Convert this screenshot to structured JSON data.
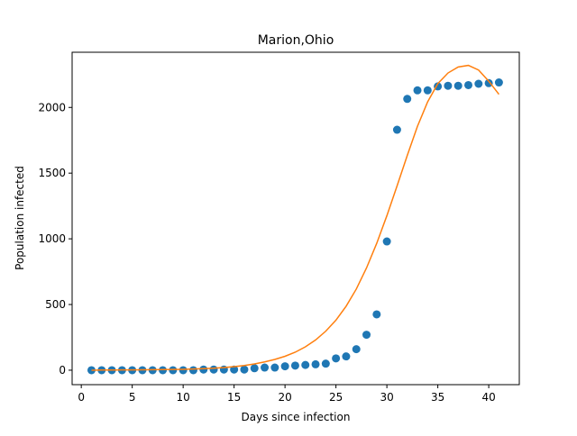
{
  "chart_data": {
    "type": "scatter",
    "title": "Marion,Ohio",
    "xlabel": "Days since infection",
    "ylabel": "Population infected",
    "xlim": [
      -0.9,
      43.0
    ],
    "ylim": [
      -110,
      2420
    ],
    "xticks": [
      0,
      5,
      10,
      15,
      20,
      25,
      30,
      35,
      40
    ],
    "yticks": [
      0,
      500,
      1000,
      1500,
      2000
    ],
    "grid": false,
    "legend": "none",
    "series": [
      {
        "kind": "scatter",
        "color": "#1f77b4",
        "x": [
          1,
          2,
          3,
          4,
          5,
          6,
          7,
          8,
          9,
          10,
          11,
          12,
          13,
          14,
          15,
          16,
          17,
          18,
          19,
          20,
          21,
          22,
          23,
          24,
          25,
          26,
          27,
          28,
          29,
          30,
          31,
          32,
          33,
          34,
          35,
          36,
          37,
          38,
          39,
          40,
          41
        ],
        "y": [
          0,
          0,
          0,
          0,
          0,
          0,
          0,
          0,
          0,
          0,
          0,
          5,
          5,
          5,
          5,
          5,
          15,
          20,
          20,
          30,
          35,
          40,
          45,
          50,
          90,
          105,
          160,
          270,
          425,
          980,
          1830,
          2065,
          2130,
          2130,
          2160,
          2165,
          2165,
          2170,
          2180,
          2185,
          2190
        ]
      },
      {
        "kind": "line",
        "color": "#ff7f0e",
        "x": [
          1,
          2,
          3,
          4,
          5,
          6,
          7,
          8,
          9,
          10,
          11,
          12,
          13,
          14,
          15,
          16,
          17,
          18,
          19,
          20,
          21,
          22,
          23,
          24,
          25,
          26,
          27,
          28,
          29,
          30,
          31,
          32,
          33,
          34,
          35,
          36,
          37,
          38,
          39,
          40,
          41
        ],
        "y": [
          0,
          1,
          1,
          2,
          2,
          3,
          4,
          5,
          6,
          7,
          9,
          12,
          15,
          20,
          27,
          36,
          48,
          63,
          82,
          106,
          137,
          178,
          230,
          297,
          381,
          487,
          618,
          778,
          965,
          1176,
          1403,
          1634,
          1856,
          2042,
          2181,
          2262,
          2308,
          2320,
          2285,
          2200,
          2100
        ]
      }
    ]
  }
}
